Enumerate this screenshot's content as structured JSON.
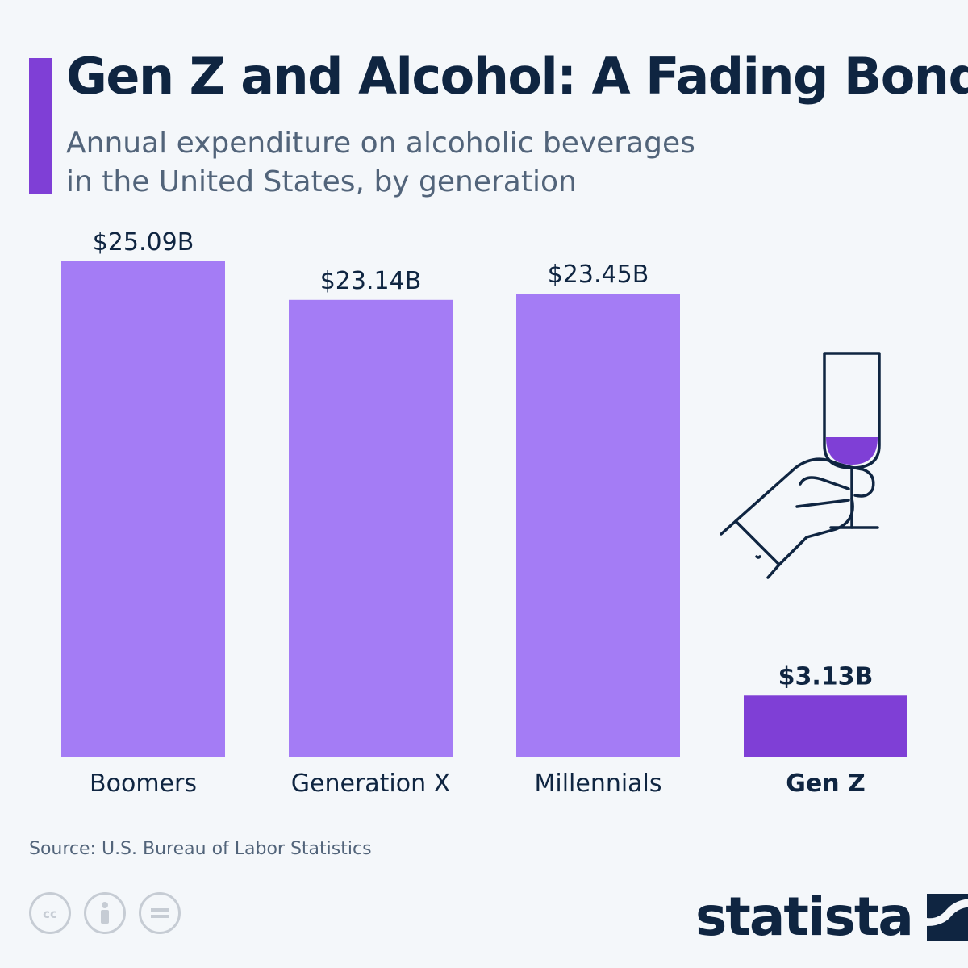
{
  "title": "Gen Z and Alcohol: A Fading Bond",
  "subtitle_line1": "Annual expenditure on alcoholic beverages",
  "subtitle_line2": "in the United States, by generation",
  "colors": {
    "bar": "#a47cf5",
    "bar_highlight": "#7f3fd6",
    "text": "#0f2541",
    "muted": "#52647a"
  },
  "chart_data": {
    "type": "bar",
    "title": "Gen Z and Alcohol: A Fading Bond",
    "xlabel": "",
    "ylabel": "",
    "ylim": [
      0,
      25.09
    ],
    "categories": [
      "Boomers",
      "Generation X",
      "Millennials",
      "Gen Z"
    ],
    "values": [
      25.09,
      23.14,
      23.45,
      3.13
    ],
    "value_labels": [
      "$25.09B",
      "$23.14B",
      "$23.45B",
      "$3.13B"
    ],
    "highlight_index": 3,
    "unit": "billion USD"
  },
  "source": "Source: U.S. Bureau of Labor Statistics",
  "license_icons": [
    "cc-icon",
    "attribution-icon",
    "no-derivatives-icon"
  ],
  "brand": "statista"
}
